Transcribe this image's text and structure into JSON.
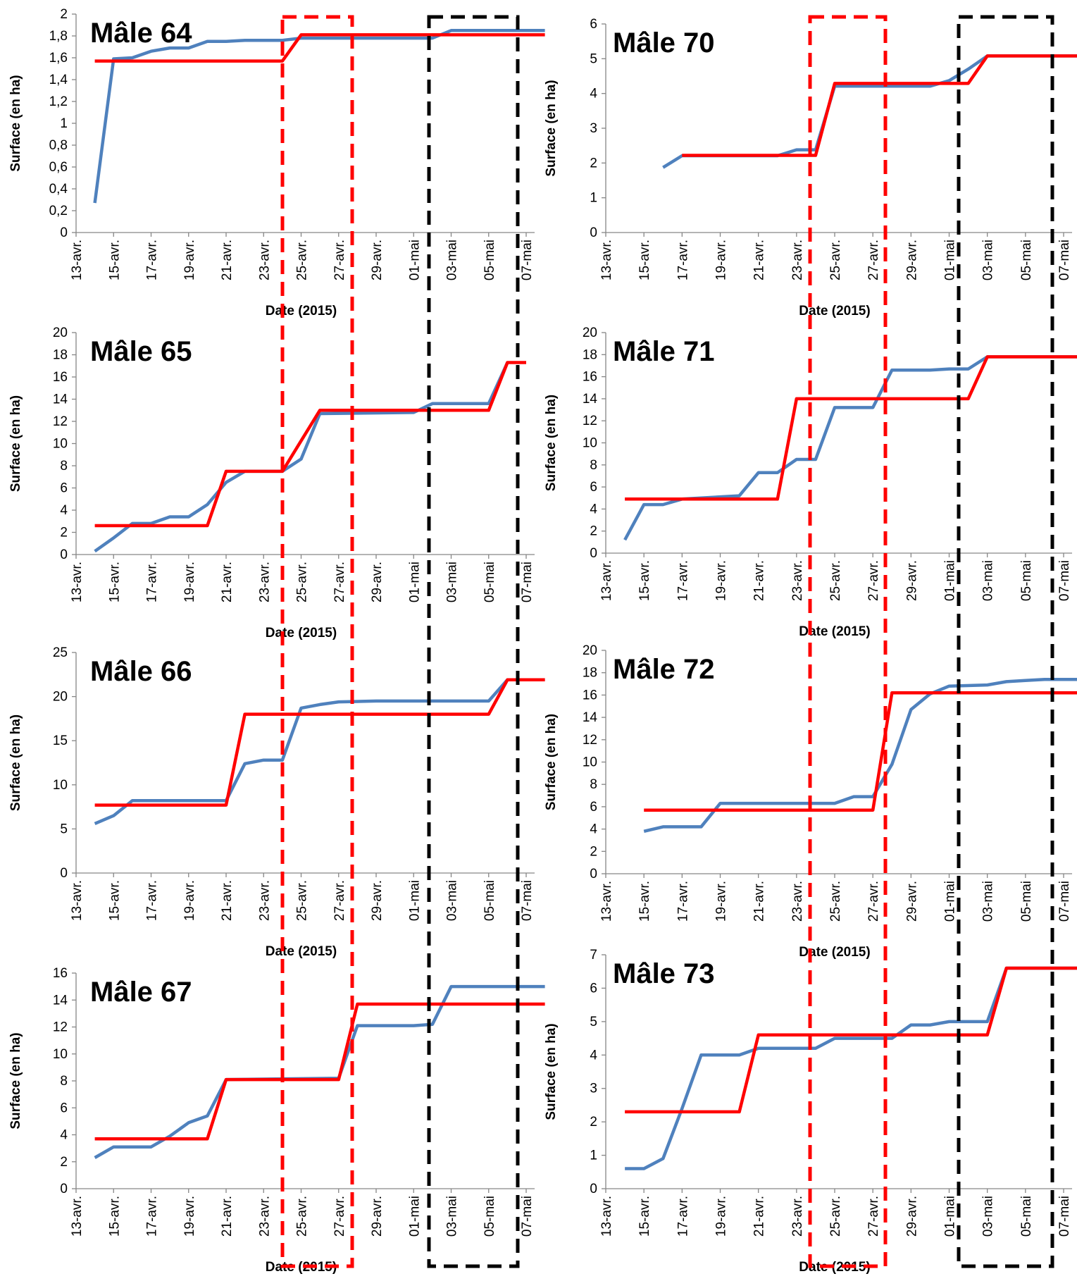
{
  "colors": {
    "observed": "#4f81bd",
    "model": "#ff0000",
    "red_box": "#ff0000",
    "black_box": "#000000",
    "axis": "#868686"
  },
  "common": {
    "xlabel": "Date (2015)",
    "ylabel": "Surface (en ha)",
    "x_ticks": [
      "13-avr.",
      "15-avr.",
      "17-avr.",
      "19-avr.",
      "21-avr.",
      "23-avr.",
      "25-avr.",
      "27-avr.",
      "29-avr.",
      "01-mai",
      "03-mai",
      "05-mai",
      "07-mai"
    ]
  },
  "chart_data": [
    {
      "type": "line",
      "title": "Mâle 64",
      "xlim": [
        "2015-04-13",
        "2015-05-07"
      ],
      "ylim": [
        0,
        2
      ],
      "y_ticks": [
        "0",
        "0,2",
        "0,4",
        "0,6",
        "0,8",
        "1",
        "1,2",
        "1,4",
        "1,6",
        "1,8",
        "2"
      ],
      "series": [
        {
          "x": [
            "2015-04-14",
            "2015-04-15",
            "2015-04-16",
            "2015-04-17",
            "2015-04-18",
            "2015-04-19",
            "2015-04-20",
            "2015-04-21",
            "2015-04-22",
            "2015-04-23",
            "2015-04-24",
            "2015-04-25",
            "2015-04-30",
            "2015-05-01",
            "2015-05-02",
            "2015-05-03",
            "2015-05-07",
            "2015-05-08"
          ],
          "y": [
            0.27,
            1.59,
            1.6,
            1.66,
            1.69,
            1.69,
            1.75,
            1.75,
            1.76,
            1.76,
            1.76,
            1.78,
            1.78,
            1.78,
            1.78,
            1.85,
            1.85,
            1.85
          ]
        },
        {
          "x": [
            "2015-04-14",
            "2015-04-24",
            "2015-04-25",
            "2015-05-08"
          ],
          "y": [
            1.57,
            1.57,
            1.81,
            1.81
          ]
        }
      ]
    },
    {
      "type": "line",
      "title": "Mâle 70",
      "xlim": [
        "2015-04-13",
        "2015-05-07"
      ],
      "ylim": [
        0,
        6
      ],
      "y_ticks": [
        "0",
        "1",
        "2",
        "3",
        "4",
        "5",
        "6"
      ],
      "series": [
        {
          "x": [
            "2015-04-16",
            "2015-04-17",
            "2015-04-22",
            "2015-04-23",
            "2015-04-24",
            "2015-04-25",
            "2015-04-30",
            "2015-05-01",
            "2015-05-02",
            "2015-05-03",
            "2015-05-08"
          ],
          "y": [
            1.87,
            2.21,
            2.21,
            2.38,
            2.38,
            4.21,
            4.21,
            4.37,
            4.7,
            5.08,
            5.08
          ]
        },
        {
          "x": [
            "2015-04-17",
            "2015-04-24",
            "2015-04-25",
            "2015-05-02",
            "2015-05-03",
            "2015-05-08"
          ],
          "y": [
            2.22,
            2.22,
            4.29,
            4.29,
            5.08,
            5.08
          ]
        }
      ]
    },
    {
      "type": "line",
      "title": "Mâle 65",
      "xlim": [
        "2015-04-13",
        "2015-05-07"
      ],
      "ylim": [
        0,
        20
      ],
      "y_ticks": [
        "0",
        "2",
        "4",
        "6",
        "8",
        "10",
        "12",
        "14",
        "16",
        "18",
        "20"
      ],
      "series": [
        {
          "x": [
            "2015-04-14",
            "2015-04-15",
            "2015-04-16",
            "2015-04-17",
            "2015-04-18",
            "2015-04-19",
            "2015-04-20",
            "2015-04-21",
            "2015-04-22",
            "2015-04-24",
            "2015-04-25",
            "2015-04-26",
            "2015-05-01",
            "2015-05-02",
            "2015-05-05",
            "2015-05-06"
          ],
          "y": [
            0.3,
            1.5,
            2.8,
            2.8,
            3.4,
            3.4,
            4.5,
            6.5,
            7.5,
            7.5,
            8.6,
            12.7,
            12.8,
            13.6,
            13.6,
            17.3
          ]
        },
        {
          "x": [
            "2015-04-14",
            "2015-04-20",
            "2015-04-21",
            "2015-04-24",
            "2015-04-26",
            "2015-05-05",
            "2015-05-06",
            "2015-05-07"
          ],
          "y": [
            2.6,
            2.6,
            7.5,
            7.5,
            13.0,
            13.0,
            17.3,
            17.3
          ]
        }
      ]
    },
    {
      "type": "line",
      "title": "Mâle 71",
      "xlim": [
        "2015-04-13",
        "2015-05-07"
      ],
      "ylim": [
        0,
        20
      ],
      "y_ticks": [
        "0",
        "2",
        "4",
        "6",
        "8",
        "10",
        "12",
        "14",
        "16",
        "18",
        "20"
      ],
      "series": [
        {
          "x": [
            "2015-04-14",
            "2015-04-15",
            "2015-04-16",
            "2015-04-17",
            "2015-04-20",
            "2015-04-21",
            "2015-04-22",
            "2015-04-23",
            "2015-04-24",
            "2015-04-25",
            "2015-04-27",
            "2015-04-28",
            "2015-04-30",
            "2015-05-01",
            "2015-05-02",
            "2015-05-03",
            "2015-05-08"
          ],
          "y": [
            1.2,
            4.4,
            4.4,
            4.9,
            5.2,
            7.3,
            7.3,
            8.5,
            8.5,
            13.2,
            13.2,
            16.6,
            16.6,
            16.7,
            16.7,
            17.8,
            17.8
          ]
        },
        {
          "x": [
            "2015-04-14",
            "2015-04-22",
            "2015-04-23",
            "2015-05-02",
            "2015-05-03",
            "2015-05-08"
          ],
          "y": [
            4.9,
            4.9,
            14.0,
            14.0,
            17.8,
            17.8
          ]
        }
      ]
    },
    {
      "type": "line",
      "title": "Mâle 66",
      "xlim": [
        "2015-04-13",
        "2015-05-07"
      ],
      "ylim": [
        0,
        25
      ],
      "y_ticks": [
        "0",
        "5",
        "10",
        "15",
        "20",
        "25"
      ],
      "series": [
        {
          "x": [
            "2015-04-14",
            "2015-04-15",
            "2015-04-16",
            "2015-04-21",
            "2015-04-22",
            "2015-04-23",
            "2015-04-24",
            "2015-04-25",
            "2015-04-26",
            "2015-04-27",
            "2015-04-29",
            "2015-05-01",
            "2015-05-05",
            "2015-05-06",
            "2015-05-08"
          ],
          "y": [
            5.6,
            6.5,
            8.2,
            8.2,
            12.4,
            12.8,
            12.8,
            18.7,
            19.1,
            19.4,
            19.5,
            19.5,
            19.5,
            21.9,
            21.9
          ]
        },
        {
          "x": [
            "2015-04-14",
            "2015-04-21",
            "2015-04-22",
            "2015-05-05",
            "2015-05-06",
            "2015-05-08"
          ],
          "y": [
            7.7,
            7.7,
            18.0,
            18.0,
            21.9,
            21.9
          ]
        }
      ]
    },
    {
      "type": "line",
      "title": "Mâle 72",
      "xlim": [
        "2015-04-13",
        "2015-05-07"
      ],
      "ylim": [
        0,
        20
      ],
      "y_ticks": [
        "0",
        "2",
        "4",
        "6",
        "8",
        "10",
        "12",
        "14",
        "16",
        "18",
        "20"
      ],
      "series": [
        {
          "x": [
            "2015-04-15",
            "2015-04-16",
            "2015-04-18",
            "2015-04-19",
            "2015-04-25",
            "2015-04-26",
            "2015-04-27",
            "2015-04-28",
            "2015-04-29",
            "2015-04-30",
            "2015-05-01",
            "2015-05-03",
            "2015-05-04",
            "2015-05-05",
            "2015-05-06",
            "2015-05-08"
          ],
          "y": [
            3.8,
            4.2,
            4.2,
            6.3,
            6.3,
            6.9,
            6.9,
            9.8,
            14.7,
            16.1,
            16.8,
            16.9,
            17.2,
            17.3,
            17.4,
            17.4
          ]
        },
        {
          "x": [
            "2015-04-15",
            "2015-04-27",
            "2015-04-28",
            "2015-05-08"
          ],
          "y": [
            5.7,
            5.7,
            16.2,
            16.2
          ]
        }
      ]
    },
    {
      "type": "line",
      "title": "Mâle 67",
      "xlim": [
        "2015-04-13",
        "2015-05-07"
      ],
      "ylim": [
        0,
        16
      ],
      "y_ticks": [
        "0",
        "2",
        "4",
        "6",
        "8",
        "10",
        "12",
        "14",
        "16"
      ],
      "series": [
        {
          "x": [
            "2015-04-14",
            "2015-04-15",
            "2015-04-17",
            "2015-04-18",
            "2015-04-19",
            "2015-04-20",
            "2015-04-21",
            "2015-04-27",
            "2015-04-28",
            "2015-05-01",
            "2015-05-02",
            "2015-05-03",
            "2015-05-08"
          ],
          "y": [
            2.3,
            3.1,
            3.1,
            3.9,
            4.9,
            5.4,
            8.1,
            8.2,
            12.1,
            12.1,
            12.2,
            15.0,
            15.0
          ]
        },
        {
          "x": [
            "2015-04-14",
            "2015-04-20",
            "2015-04-21",
            "2015-04-27",
            "2015-04-28",
            "2015-05-08"
          ],
          "y": [
            3.7,
            3.7,
            8.1,
            8.1,
            13.7,
            13.7
          ]
        }
      ]
    },
    {
      "type": "line",
      "title": "Mâle 73",
      "xlim": [
        "2015-04-13",
        "2015-05-07"
      ],
      "ylim": [
        0,
        7
      ],
      "y_ticks": [
        "0",
        "1",
        "2",
        "3",
        "4",
        "5",
        "6",
        "7"
      ],
      "series": [
        {
          "x": [
            "2015-04-14",
            "2015-04-15",
            "2015-04-16",
            "2015-04-17",
            "2015-04-18",
            "2015-04-20",
            "2015-04-21",
            "2015-04-24",
            "2015-04-25",
            "2015-04-28",
            "2015-04-29",
            "2015-04-30",
            "2015-05-01",
            "2015-05-02",
            "2015-05-03",
            "2015-05-04",
            "2015-05-08"
          ],
          "y": [
            0.6,
            0.6,
            0.9,
            2.4,
            4.0,
            4.0,
            4.2,
            4.2,
            4.5,
            4.5,
            4.9,
            4.9,
            5.0,
            5.0,
            5.0,
            6.6,
            6.6
          ]
        },
        {
          "x": [
            "2015-04-14",
            "2015-04-20",
            "2015-04-21",
            "2015-05-03",
            "2015-05-04",
            "2015-05-08"
          ],
          "y": [
            2.3,
            2.3,
            4.6,
            4.6,
            6.6,
            6.6
          ]
        }
      ]
    }
  ]
}
